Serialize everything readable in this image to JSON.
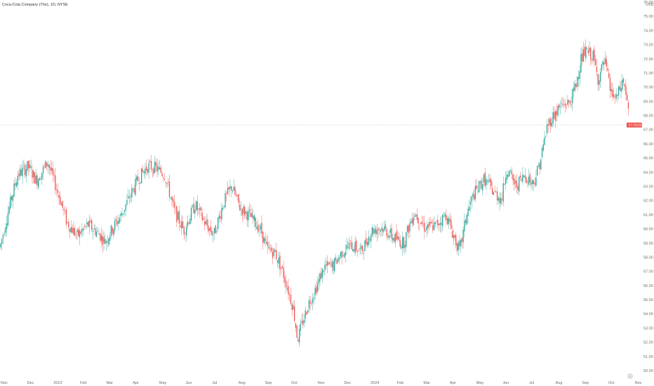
{
  "chart_data": {
    "type": "candlestick",
    "title": "Coca-Cola Company (The), 1D, NYSE",
    "currency": "USD",
    "ylim": [
      50,
      76
    ],
    "y_ticks": [
      "76.00",
      "75.00",
      "74.00",
      "73.00",
      "72.00",
      "71.00",
      "70.00",
      "69.00",
      "68.00",
      "67.00",
      "66.00",
      "65.00",
      "64.00",
      "63.00",
      "62.00",
      "61.00",
      "60.00",
      "59.00",
      "58.00",
      "57.00",
      "56.00",
      "55.00",
      "54.00",
      "53.00",
      "52.00",
      "51.00",
      "50.00"
    ],
    "x_ticks": [
      "Nov",
      "Dec",
      "2023",
      "Feb",
      "Mar",
      "Apr",
      "May",
      "Jun",
      "Jul",
      "Aug",
      "Sep",
      "Oct",
      "Nov",
      "Dec",
      "2024",
      "Feb",
      "Mar",
      "Apr",
      "May",
      "Jun",
      "Jul",
      "Aug",
      "Sep",
      "Oct",
      "Nov"
    ],
    "last_price": 67.33,
    "last_price_label": "67.33",
    "last_price_sublabel": "USD",
    "up_color": "#26a69a",
    "down_color": "#ef5350",
    "price_path": [
      [
        0,
        58.7
      ],
      [
        12,
        61.3
      ],
      [
        25,
        63.8
      ],
      [
        40,
        64.4
      ],
      [
        52,
        63.4
      ],
      [
        68,
        64.7
      ],
      [
        85,
        62.2
      ],
      [
        95,
        60.5
      ],
      [
        110,
        59.5
      ],
      [
        125,
        60.3
      ],
      [
        140,
        59.7
      ],
      [
        150,
        59.1
      ],
      [
        160,
        60.0
      ],
      [
        172,
        60.9
      ],
      [
        185,
        62.3
      ],
      [
        198,
        63.6
      ],
      [
        210,
        64.4
      ],
      [
        222,
        64.3
      ],
      [
        235,
        63.8
      ],
      [
        248,
        61.3
      ],
      [
        262,
        59.9
      ],
      [
        278,
        61.7
      ],
      [
        292,
        60.4
      ],
      [
        305,
        59.6
      ],
      [
        318,
        61.8
      ],
      [
        330,
        63.0
      ],
      [
        342,
        61.5
      ],
      [
        358,
        60.8
      ],
      [
        372,
        59.9
      ],
      [
        380,
        58.6
      ],
      [
        392,
        58.3
      ],
      [
        402,
        57.1
      ],
      [
        410,
        55.8
      ],
      [
        418,
        54.4
      ],
      [
        424,
        52.2
      ],
      [
        432,
        53.5
      ],
      [
        440,
        54.8
      ],
      [
        450,
        55.8
      ],
      [
        462,
        57.3
      ],
      [
        475,
        57.4
      ],
      [
        488,
        58.4
      ],
      [
        500,
        58.9
      ],
      [
        515,
        58.4
      ],
      [
        530,
        59.9
      ],
      [
        545,
        60.1
      ],
      [
        560,
        59.4
      ],
      [
        575,
        59.0
      ],
      [
        590,
        61.2
      ],
      [
        605,
        60.1
      ],
      [
        620,
        60.2
      ],
      [
        636,
        61.0
      ],
      [
        645,
        59.7
      ],
      [
        655,
        58.4
      ],
      [
        665,
        61.0
      ],
      [
        675,
        62.4
      ],
      [
        690,
        63.5
      ],
      [
        705,
        62.5
      ],
      [
        715,
        62.1
      ],
      [
        722,
        64.3
      ],
      [
        735,
        63.0
      ],
      [
        748,
        63.8
      ],
      [
        760,
        63.2
      ],
      [
        770,
        64.8
      ],
      [
        780,
        67.3
      ],
      [
        790,
        68.1
      ],
      [
        800,
        68.7
      ],
      [
        812,
        68.9
      ],
      [
        820,
        70.0
      ],
      [
        828,
        72.0
      ],
      [
        835,
        72.5
      ],
      [
        845,
        72.2
      ],
      [
        852,
        70.6
      ],
      [
        862,
        71.8
      ],
      [
        870,
        69.7
      ],
      [
        878,
        69.1
      ],
      [
        888,
        70.5
      ],
      [
        893,
        69.3
      ],
      [
        897,
        67.3
      ]
    ]
  }
}
